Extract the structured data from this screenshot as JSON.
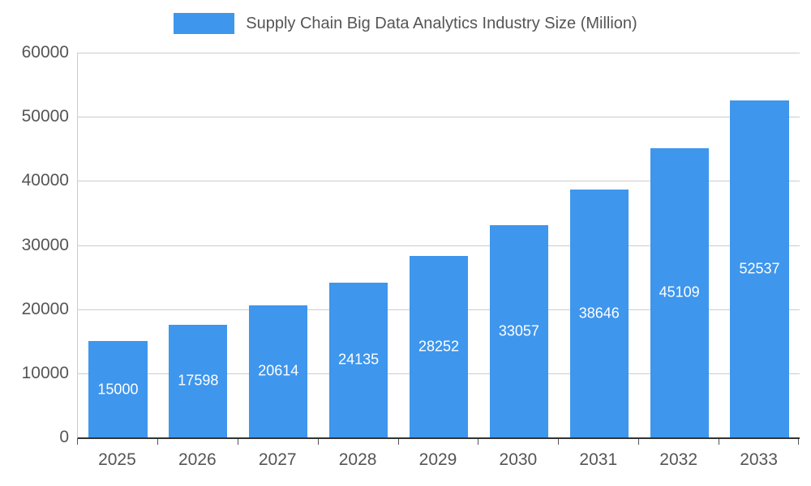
{
  "colors": {
    "bar": "#3e96ed",
    "grid": "#cccccc",
    "axis": "#333333",
    "tick_text": "#555555",
    "value_text": "#ffffff"
  },
  "legend": {
    "label": "Supply Chain Big Data Analytics Industry Size (Million)"
  },
  "chart_data": {
    "type": "bar",
    "title": "Supply Chain Big Data Analytics Industry Size (Million)",
    "categories": [
      "2025",
      "2026",
      "2027",
      "2028",
      "2029",
      "2030",
      "2031",
      "2032",
      "2033"
    ],
    "values": [
      15000,
      17598,
      20614,
      24135,
      28252,
      33057,
      38646,
      45109,
      52537
    ],
    "series": [
      {
        "name": "Supply Chain Big Data Analytics Industry Size (Million)",
        "values": [
          15000,
          17598,
          20614,
          24135,
          28252,
          33057,
          38646,
          45109,
          52537
        ]
      }
    ],
    "xlabel": "",
    "ylabel": "",
    "ylim": [
      0,
      60000
    ],
    "y_ticks": [
      0,
      10000,
      20000,
      30000,
      40000,
      50000,
      60000
    ],
    "grid": true,
    "legend_position": "top",
    "value_labels": "inside-center"
  }
}
